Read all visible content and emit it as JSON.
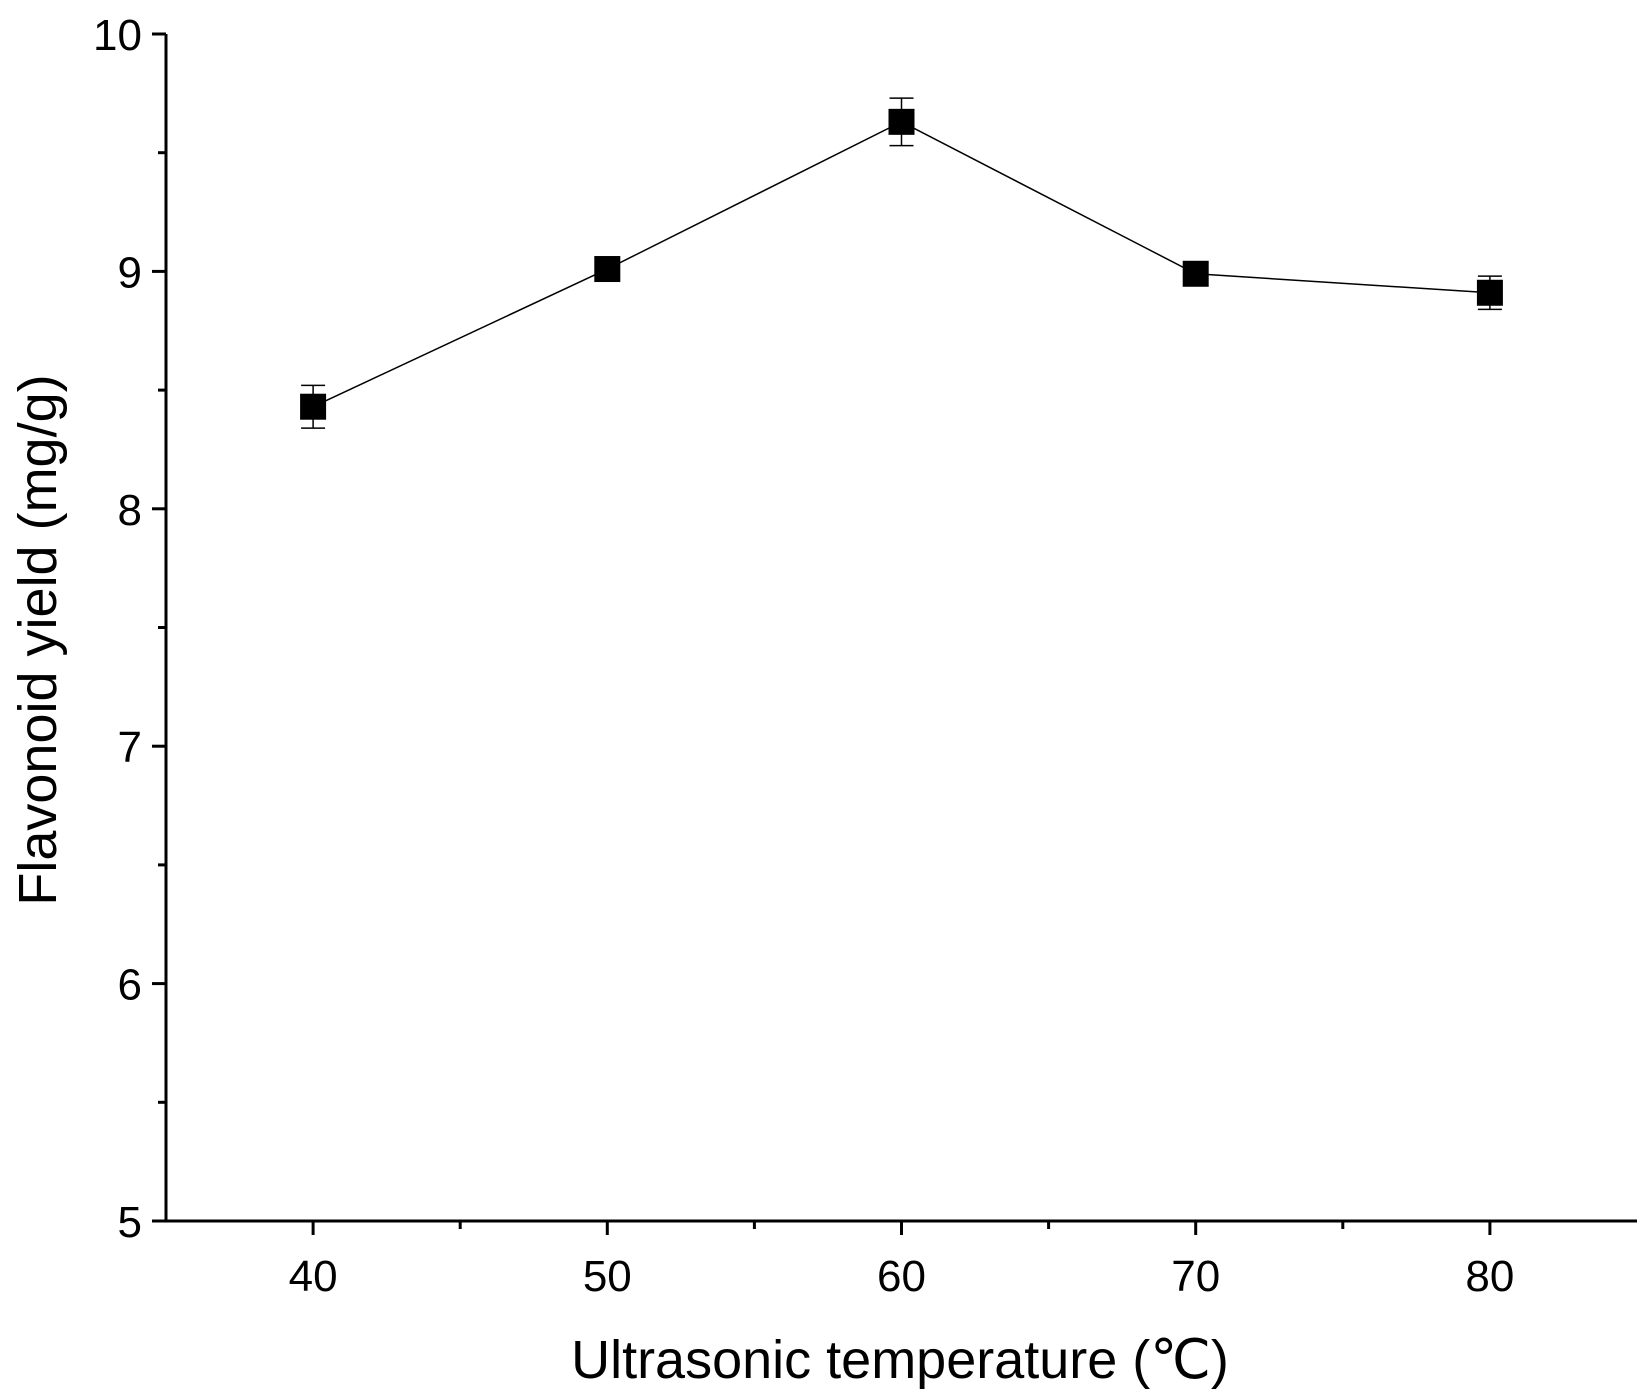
{
  "chart_data": {
    "type": "line",
    "xlabel": "Ultrasonic temperature (℃)",
    "ylabel": "Flavonoid yield (mg/g)",
    "xlim": [
      35,
      85
    ],
    "ylim": [
      5,
      10
    ],
    "x_ticks": [
      40,
      50,
      60,
      70,
      80
    ],
    "x_tick_labels": [
      "40",
      "50",
      "60",
      "70",
      "80"
    ],
    "x_minor_ticks": [
      45,
      55,
      65,
      75
    ],
    "y_ticks": [
      5,
      6,
      7,
      8,
      9,
      10
    ],
    "y_tick_labels": [
      "5",
      "6",
      "7",
      "8",
      "9",
      "10"
    ],
    "y_minor_ticks": [
      5.5,
      6.5,
      7.5,
      8.5,
      9.5
    ],
    "grid": false,
    "legend": "none",
    "marker": "square",
    "color": "#000000",
    "series": [
      {
        "x": [
          40,
          50,
          60,
          70,
          80
        ],
        "y": [
          8.43,
          9.01,
          9.63,
          8.99,
          8.91
        ],
        "error": [
          0.09,
          0.03,
          0.1,
          0.03,
          0.07
        ]
      }
    ]
  }
}
